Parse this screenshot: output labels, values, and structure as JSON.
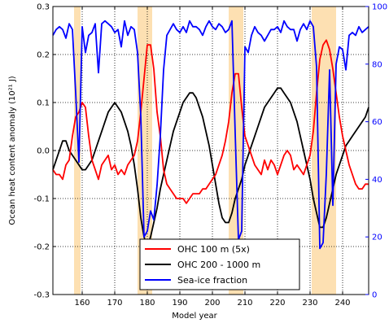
{
  "chart_data": {
    "type": "line",
    "xlabel": "Model year",
    "ylabel": "Ocean heat content anomaly (10²¹ J)",
    "xlim": [
      151,
      248
    ],
    "ylim": [
      -0.3,
      0.3
    ],
    "y2lim": [
      0,
      100
    ],
    "x_ticks": [
      160,
      170,
      180,
      190,
      200,
      210,
      220,
      230,
      240
    ],
    "y_ticks": [
      "-0.3",
      "-0.2",
      "-0.1",
      "0.0",
      "0.1",
      "0.2",
      "0.3"
    ],
    "y2_ticks": [
      "0",
      "20",
      "40",
      "60",
      "80",
      "100"
    ],
    "y2_color": "#0000ff",
    "grid": "dotted",
    "legend_position": "bottom-center",
    "shaded_periods": [
      [
        157.5,
        159.5
      ],
      [
        177,
        181.5
      ],
      [
        205,
        209.5
      ],
      [
        230.5,
        238
      ]
    ],
    "shade_color": "#fde0b2",
    "series": [
      {
        "name": "OHC 100 m (5x)",
        "color": "#ff0000",
        "axis": "left",
        "x": [
          151,
          152,
          153,
          154,
          155,
          156,
          157,
          158,
          159,
          160,
          161,
          162,
          163,
          164,
          165,
          166,
          167,
          168,
          169,
          170,
          171,
          172,
          173,
          174,
          175,
          176,
          177,
          178,
          179,
          180,
          181,
          182,
          183,
          184,
          185,
          186,
          187,
          188,
          189,
          190,
          191,
          192,
          193,
          194,
          195,
          196,
          197,
          198,
          199,
          200,
          201,
          202,
          203,
          204,
          205,
          206,
          207,
          208,
          209,
          210,
          211,
          212,
          213,
          214,
          215,
          216,
          217,
          218,
          219,
          220,
          221,
          222,
          223,
          224,
          225,
          226,
          227,
          228,
          229,
          230,
          231,
          232,
          233,
          234,
          235,
          236,
          237,
          238,
          239,
          240,
          241,
          242,
          243,
          244,
          245,
          246,
          247,
          248
        ],
        "y": [
          -0.04,
          -0.05,
          -0.05,
          -0.06,
          -0.03,
          -0.02,
          0.03,
          0.07,
          0.08,
          0.1,
          0.09,
          0.03,
          -0.02,
          -0.04,
          -0.06,
          -0.03,
          -0.02,
          -0.01,
          -0.04,
          -0.03,
          -0.05,
          -0.04,
          -0.05,
          -0.03,
          -0.02,
          -0.01,
          0.02,
          0.08,
          0.15,
          0.22,
          0.22,
          0.17,
          0.08,
          0.03,
          -0.04,
          -0.07,
          -0.08,
          -0.09,
          -0.1,
          -0.1,
          -0.1,
          -0.11,
          -0.1,
          -0.09,
          -0.09,
          -0.09,
          -0.08,
          -0.08,
          -0.07,
          -0.06,
          -0.05,
          -0.03,
          -0.01,
          0.02,
          0.06,
          0.12,
          0.16,
          0.16,
          0.09,
          0.03,
          0.01,
          -0.01,
          -0.03,
          -0.04,
          -0.05,
          -0.02,
          -0.04,
          -0.02,
          -0.03,
          -0.05,
          -0.03,
          -0.01,
          0.0,
          -0.01,
          -0.04,
          -0.03,
          -0.04,
          -0.05,
          -0.03,
          -0.01,
          0.04,
          0.12,
          0.19,
          0.22,
          0.23,
          0.21,
          0.17,
          0.12,
          0.07,
          0.03,
          0.0,
          -0.03,
          -0.05,
          -0.07,
          -0.08,
          -0.08,
          -0.07,
          -0.07
        ]
      },
      {
        "name": "OHC 200 - 1000 m",
        "color": "#000000",
        "axis": "left",
        "x": [
          151,
          152,
          153,
          154,
          155,
          156,
          157,
          158,
          159,
          160,
          161,
          162,
          163,
          164,
          165,
          166,
          167,
          168,
          169,
          170,
          171,
          172,
          173,
          174,
          175,
          176,
          177,
          178,
          179,
          180,
          181,
          182,
          183,
          184,
          185,
          186,
          187,
          188,
          189,
          190,
          191,
          192,
          193,
          194,
          195,
          196,
          197,
          198,
          199,
          200,
          201,
          202,
          203,
          204,
          205,
          206,
          207,
          208,
          209,
          210,
          211,
          212,
          213,
          214,
          215,
          216,
          217,
          218,
          219,
          220,
          221,
          222,
          223,
          224,
          225,
          226,
          227,
          228,
          229,
          230,
          231,
          232,
          233,
          234,
          235,
          236,
          237,
          238,
          239,
          240,
          241,
          242,
          243,
          244,
          245,
          246,
          247,
          248
        ],
        "y": [
          -0.04,
          -0.02,
          0.0,
          0.02,
          0.02,
          0.0,
          -0.01,
          -0.02,
          -0.03,
          -0.04,
          -0.04,
          -0.03,
          -0.02,
          0.0,
          0.02,
          0.04,
          0.06,
          0.08,
          0.09,
          0.1,
          0.09,
          0.08,
          0.06,
          0.04,
          0.01,
          -0.03,
          -0.08,
          -0.14,
          -0.18,
          -0.2,
          -0.18,
          -0.15,
          -0.12,
          -0.08,
          -0.05,
          -0.02,
          0.01,
          0.04,
          0.06,
          0.08,
          0.1,
          0.11,
          0.12,
          0.12,
          0.11,
          0.09,
          0.07,
          0.04,
          0.01,
          -0.03,
          -0.07,
          -0.11,
          -0.14,
          -0.15,
          -0.15,
          -0.13,
          -0.1,
          -0.08,
          -0.06,
          -0.03,
          -0.01,
          0.01,
          0.03,
          0.05,
          0.07,
          0.09,
          0.1,
          0.11,
          0.12,
          0.13,
          0.13,
          0.12,
          0.11,
          0.1,
          0.08,
          0.06,
          0.03,
          0.0,
          -0.03,
          -0.06,
          -0.1,
          -0.13,
          -0.16,
          -0.16,
          -0.14,
          -0.11,
          -0.08,
          -0.05,
          -0.03,
          -0.01,
          0.01,
          0.02,
          0.03,
          0.04,
          0.05,
          0.06,
          0.07,
          0.09
        ]
      },
      {
        "name": "Sea-ice fraction",
        "color": "#0000ff",
        "axis": "right",
        "x": [
          151,
          152,
          153,
          154,
          155,
          156,
          157,
          158,
          159,
          160,
          161,
          162,
          163,
          164,
          165,
          166,
          167,
          168,
          169,
          170,
          171,
          172,
          173,
          174,
          175,
          176,
          177,
          178,
          179,
          180,
          181,
          182,
          183,
          184,
          185,
          186,
          187,
          188,
          189,
          190,
          191,
          192,
          193,
          194,
          195,
          196,
          197,
          198,
          199,
          200,
          201,
          202,
          203,
          204,
          205,
          206,
          207,
          208,
          209,
          210,
          211,
          212,
          213,
          214,
          215,
          216,
          217,
          218,
          219,
          220,
          221,
          222,
          223,
          224,
          225,
          226,
          227,
          228,
          229,
          230,
          231,
          232,
          233,
          234,
          235,
          236,
          237,
          238,
          239,
          240,
          241,
          242,
          243,
          244,
          245,
          246,
          247,
          248
        ],
        "y": [
          90,
          92,
          93,
          92,
          89,
          94,
          92,
          70,
          46,
          93,
          84,
          90,
          91,
          94,
          77,
          94,
          95,
          94,
          93,
          91,
          92,
          86,
          95,
          90,
          93,
          92,
          84,
          62,
          20,
          22,
          29,
          26,
          38,
          55,
          78,
          90,
          92,
          94,
          92,
          91,
          93,
          91,
          95,
          93,
          93,
          92,
          90,
          93,
          95,
          93,
          92,
          94,
          93,
          91,
          92,
          95,
          56,
          19,
          22,
          86,
          84,
          90,
          93,
          91,
          90,
          88,
          90,
          92,
          92,
          93,
          91,
          95,
          93,
          92,
          92,
          88,
          92,
          94,
          92,
          95,
          93,
          79,
          16,
          18,
          42,
          78,
          31,
          80,
          86,
          85,
          78,
          90,
          91,
          90,
          93,
          91,
          92,
          93
        ]
      }
    ]
  }
}
